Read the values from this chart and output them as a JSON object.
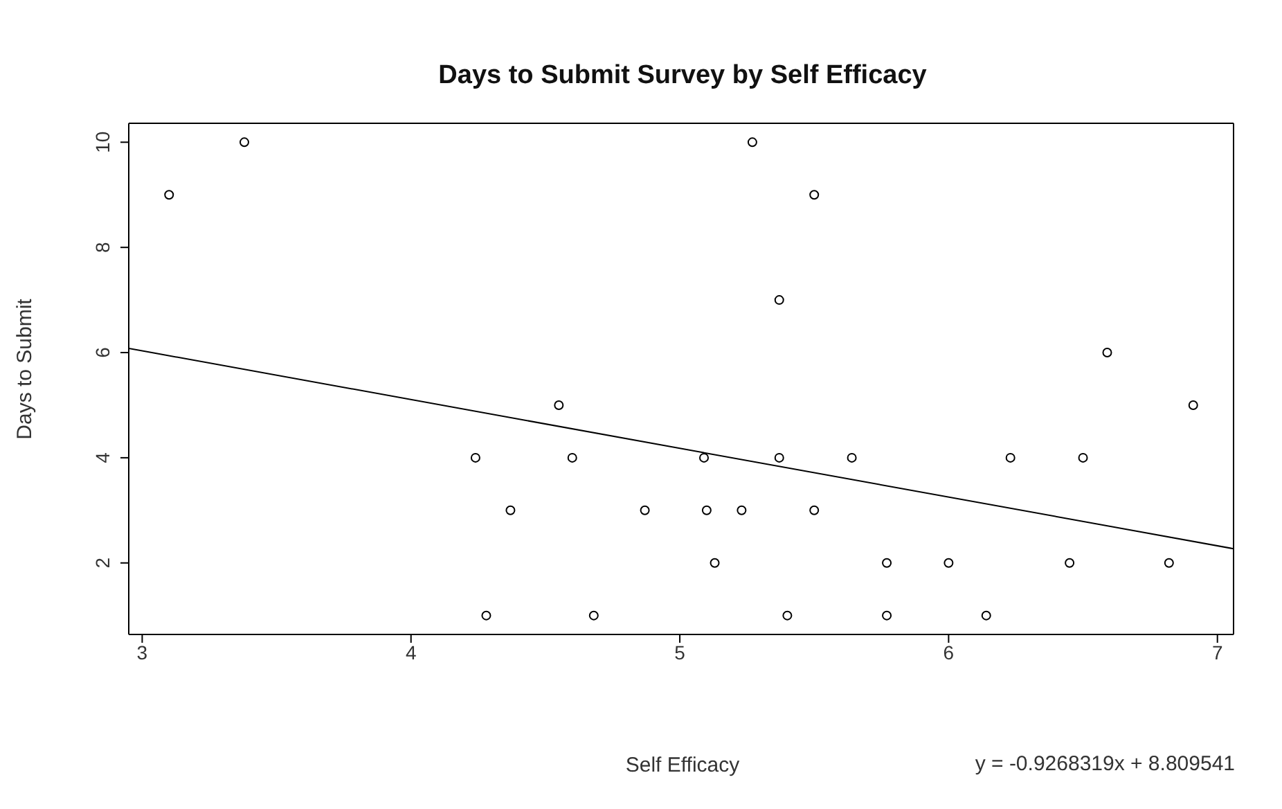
{
  "chart_data": {
    "type": "scatter",
    "title": "Days to Submit Survey by Self Efficacy",
    "xlabel": "Self Efficacy",
    "ylabel": "Days to Submit",
    "annotations": [
      "y = -0.9268319x + 8.809541"
    ],
    "xlim": [
      2.95,
      7.06
    ],
    "ylim": [
      0.64,
      10.36
    ],
    "xticks": [
      3,
      4,
      5,
      6,
      7
    ],
    "yticks": [
      2,
      4,
      6,
      8,
      10
    ],
    "series": [
      {
        "color": "#000000",
        "marker": "circle",
        "x": [
          3.1,
          3.38,
          4.24,
          4.28,
          4.37,
          4.55,
          4.6,
          4.68,
          4.87,
          5.09,
          5.1,
          5.13,
          5.23,
          5.27,
          5.37,
          5.37,
          5.4,
          5.5,
          5.5,
          5.64,
          5.77,
          5.77,
          6.0,
          6.14,
          6.23,
          6.45,
          6.5,
          6.59,
          6.82,
          6.91
        ],
        "values": [
          9,
          10,
          4,
          1,
          3,
          5,
          4,
          1,
          3,
          4,
          3,
          2,
          3,
          10,
          7,
          4,
          1,
          9,
          3,
          4,
          2,
          1,
          2,
          1,
          4,
          2,
          4,
          6,
          2,
          5
        ]
      },
      {
        "type": "line",
        "color": "#000000",
        "marker": "none",
        "line_style": "solid",
        "x": [
          2.95,
          7.06
        ],
        "values": [
          6.08,
          2.27
        ]
      }
    ]
  }
}
